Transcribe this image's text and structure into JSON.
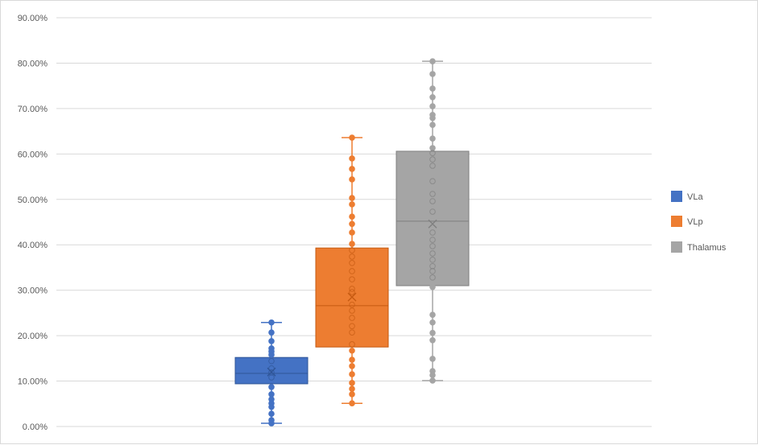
{
  "chart_data": {
    "type": "box",
    "title": "",
    "xlabel": "",
    "ylabel": "",
    "ylim": [
      0,
      0.9
    ],
    "yticks": [
      "0.00%",
      "10.00%",
      "20.00%",
      "30.00%",
      "40.00%",
      "50.00%",
      "60.00%",
      "70.00%",
      "80.00%",
      "90.00%"
    ],
    "grid": true,
    "legend_position": "right",
    "series": [
      {
        "name": "VLa",
        "color": "#4472c4",
        "min": 0.007,
        "q1": 0.094,
        "median": 0.117,
        "q3": 0.152,
        "max": 0.229,
        "mean": 0.12,
        "points": [
          0.229,
          0.207,
          0.188,
          0.172,
          0.165,
          0.158,
          0.144,
          0.128,
          0.119,
          0.108,
          0.087,
          0.071,
          0.06,
          0.051,
          0.043,
          0.028,
          0.014,
          0.007
        ]
      },
      {
        "name": "VLp",
        "color": "#ed7d31",
        "min": 0.051,
        "q1": 0.175,
        "median": 0.266,
        "q3": 0.393,
        "max": 0.636,
        "mean": 0.285,
        "points": [
          0.636,
          0.59,
          0.567,
          0.544,
          0.503,
          0.489,
          0.462,
          0.446,
          0.427,
          0.402,
          0.388,
          0.374,
          0.36,
          0.342,
          0.324,
          0.303,
          0.296,
          0.268,
          0.255,
          0.239,
          0.221,
          0.207,
          0.181,
          0.167,
          0.147,
          0.133,
          0.115,
          0.096,
          0.083,
          0.071,
          0.051
        ]
      },
      {
        "name": "Thalamus",
        "color": "#a5a5a5",
        "min": 0.101,
        "q1": 0.31,
        "median": 0.452,
        "q3": 0.606,
        "max": 0.804,
        "mean": 0.446,
        "points": [
          0.804,
          0.776,
          0.744,
          0.725,
          0.705,
          0.686,
          0.679,
          0.664,
          0.634,
          0.613,
          0.602,
          0.588,
          0.574,
          0.54,
          0.512,
          0.496,
          0.473,
          0.427,
          0.411,
          0.397,
          0.381,
          0.367,
          0.353,
          0.342,
          0.328,
          0.307,
          0.246,
          0.229,
          0.206,
          0.19,
          0.149,
          0.122,
          0.113,
          0.101
        ]
      }
    ]
  }
}
